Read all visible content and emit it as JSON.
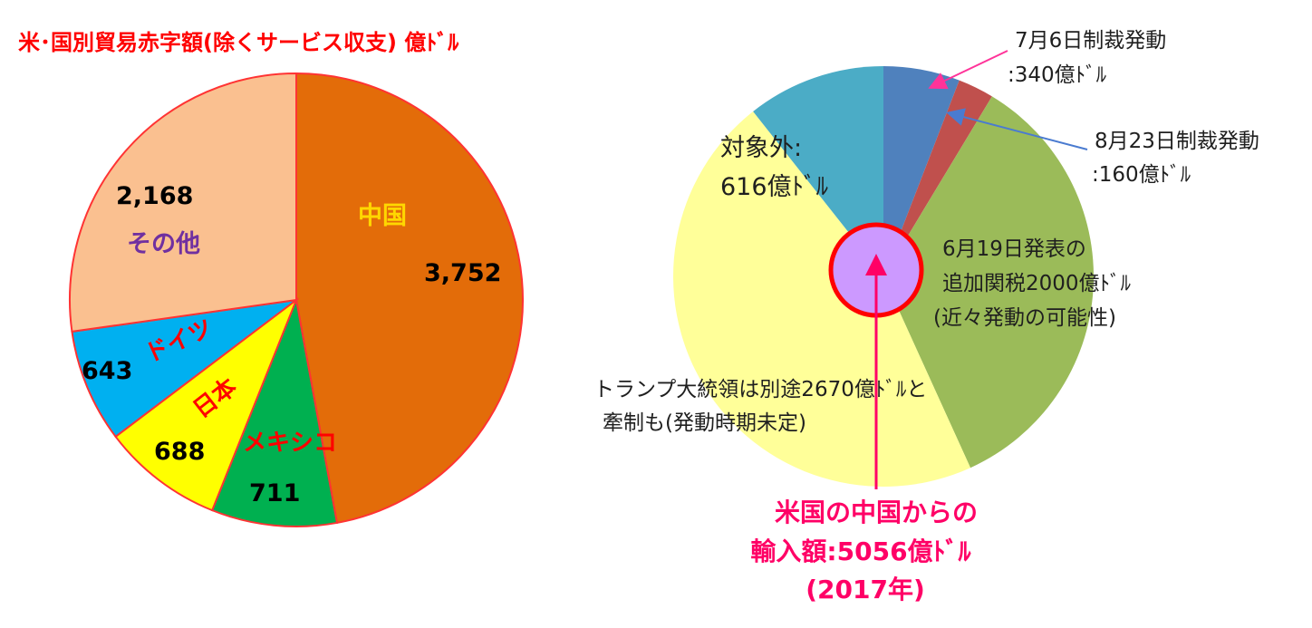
{
  "chart_data": [
    {
      "type": "pie",
      "title": "米･国別貿易赤字額(除くサービス収支) 億ﾄﾞﾙ",
      "slices": [
        {
          "label": "中国",
          "value": 3752,
          "value_label": "3,752",
          "color": "#E36C09"
        },
        {
          "label": "メキシコ",
          "value": 711,
          "value_label": "711",
          "color": "#00B050"
        },
        {
          "label": "日本",
          "value": 688,
          "value_label": "688",
          "color": "#FFFF00"
        },
        {
          "label": "ドイツ",
          "value": 643,
          "value_label": "643",
          "color": "#00B0F0"
        },
        {
          "label": "その他",
          "value": 2168,
          "value_label": "2,168",
          "color": "#FAC090"
        }
      ]
    },
    {
      "type": "pie",
      "title": "",
      "slices": [
        {
          "label": "7月6日制裁発動",
          "value_label": ":340億ﾄﾞﾙ",
          "value": 340,
          "color": "#4F81BD"
        },
        {
          "label": "8月23日制裁発動",
          "value_label": ":160億ﾄﾞﾙ",
          "value": 160,
          "color": "#C0504D"
        },
        {
          "label": "6月19日発表の",
          "value_label": "追加関税2000億ﾄﾞﾙ",
          "note": "(近々発動の可能性)",
          "value": 2000,
          "color": "#9BBB59"
        },
        {
          "label": "トランプ大統領は別途2670億ﾄﾞﾙと",
          "value_label": "牽制も(発動時期未定)",
          "value": 2670,
          "color": "#FFFF99"
        },
        {
          "label": "対象外:",
          "value_label": "616億ﾄﾞﾙ",
          "value": 616,
          "color": "#4BACC6"
        }
      ],
      "center_label": [
        "米国の中国からの",
        "輸入額:5056億ﾄﾞﾙ",
        "(2017年)"
      ],
      "accent_color": "#FF0066"
    }
  ]
}
